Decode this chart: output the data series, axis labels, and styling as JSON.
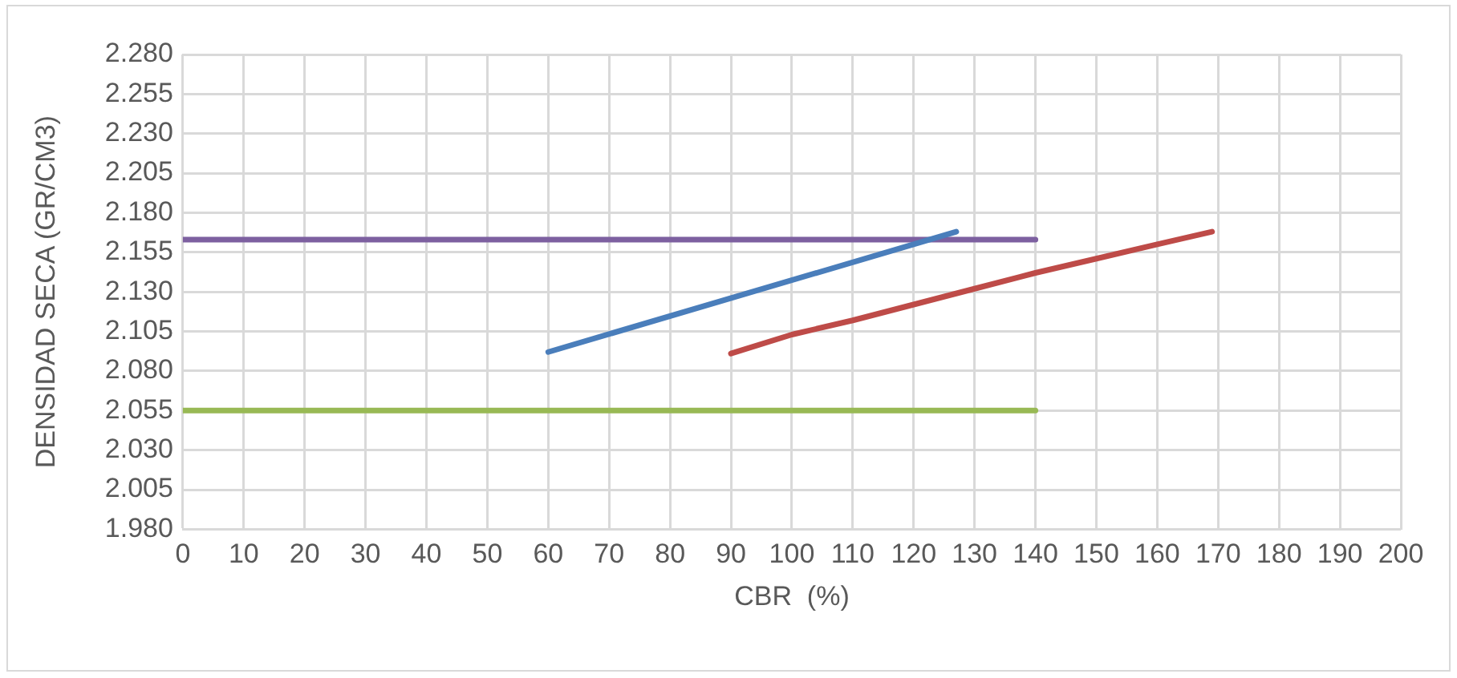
{
  "chart_data": {
    "type": "line",
    "xlabel": "CBR  (%)",
    "ylabel": "DENSIDAD SECA (GR/CM3)",
    "xlim": [
      0,
      200
    ],
    "xticks": [
      0,
      10,
      20,
      30,
      40,
      50,
      60,
      70,
      80,
      90,
      100,
      110,
      120,
      130,
      140,
      150,
      160,
      170,
      180,
      190,
      200
    ],
    "ylim": [
      1.98,
      2.28
    ],
    "yticks": [
      {
        "value": 1.98,
        "label": "1.980"
      },
      {
        "value": 2.005,
        "label": "2.005"
      },
      {
        "value": 2.03,
        "label": "2.030"
      },
      {
        "value": 2.055,
        "label": "2.055"
      },
      {
        "value": 2.08,
        "label": "2.080"
      },
      {
        "value": 2.105,
        "label": "2.105"
      },
      {
        "value": 2.13,
        "label": "2.130"
      },
      {
        "value": 2.155,
        "label": "2.155"
      },
      {
        "value": 2.18,
        "label": "2.180"
      },
      {
        "value": 2.205,
        "label": "2.205"
      },
      {
        "value": 2.23,
        "label": "2.230"
      },
      {
        "value": 2.255,
        "label": "2.255"
      },
      {
        "value": 2.28,
        "label": "2.280"
      }
    ],
    "grid": true,
    "legend": false,
    "marker": "none",
    "line_style": "solid",
    "series": [
      {
        "color": "#4a7ebb",
        "x": [
          60,
          127
        ],
        "values": [
          2.092,
          2.168
        ]
      },
      {
        "color": "#be4b48",
        "x": [
          90,
          100,
          110,
          120,
          130,
          140,
          150,
          160,
          169
        ],
        "values": [
          2.091,
          2.103,
          2.112,
          2.122,
          2.132,
          2.142,
          2.151,
          2.16,
          2.168
        ]
      },
      {
        "color": "#98b954",
        "x": [
          0,
          140
        ],
        "values": [
          2.055,
          2.055
        ]
      },
      {
        "color": "#7d60a0",
        "x": [
          0,
          140
        ],
        "values": [
          2.163,
          2.163
        ]
      }
    ]
  }
}
